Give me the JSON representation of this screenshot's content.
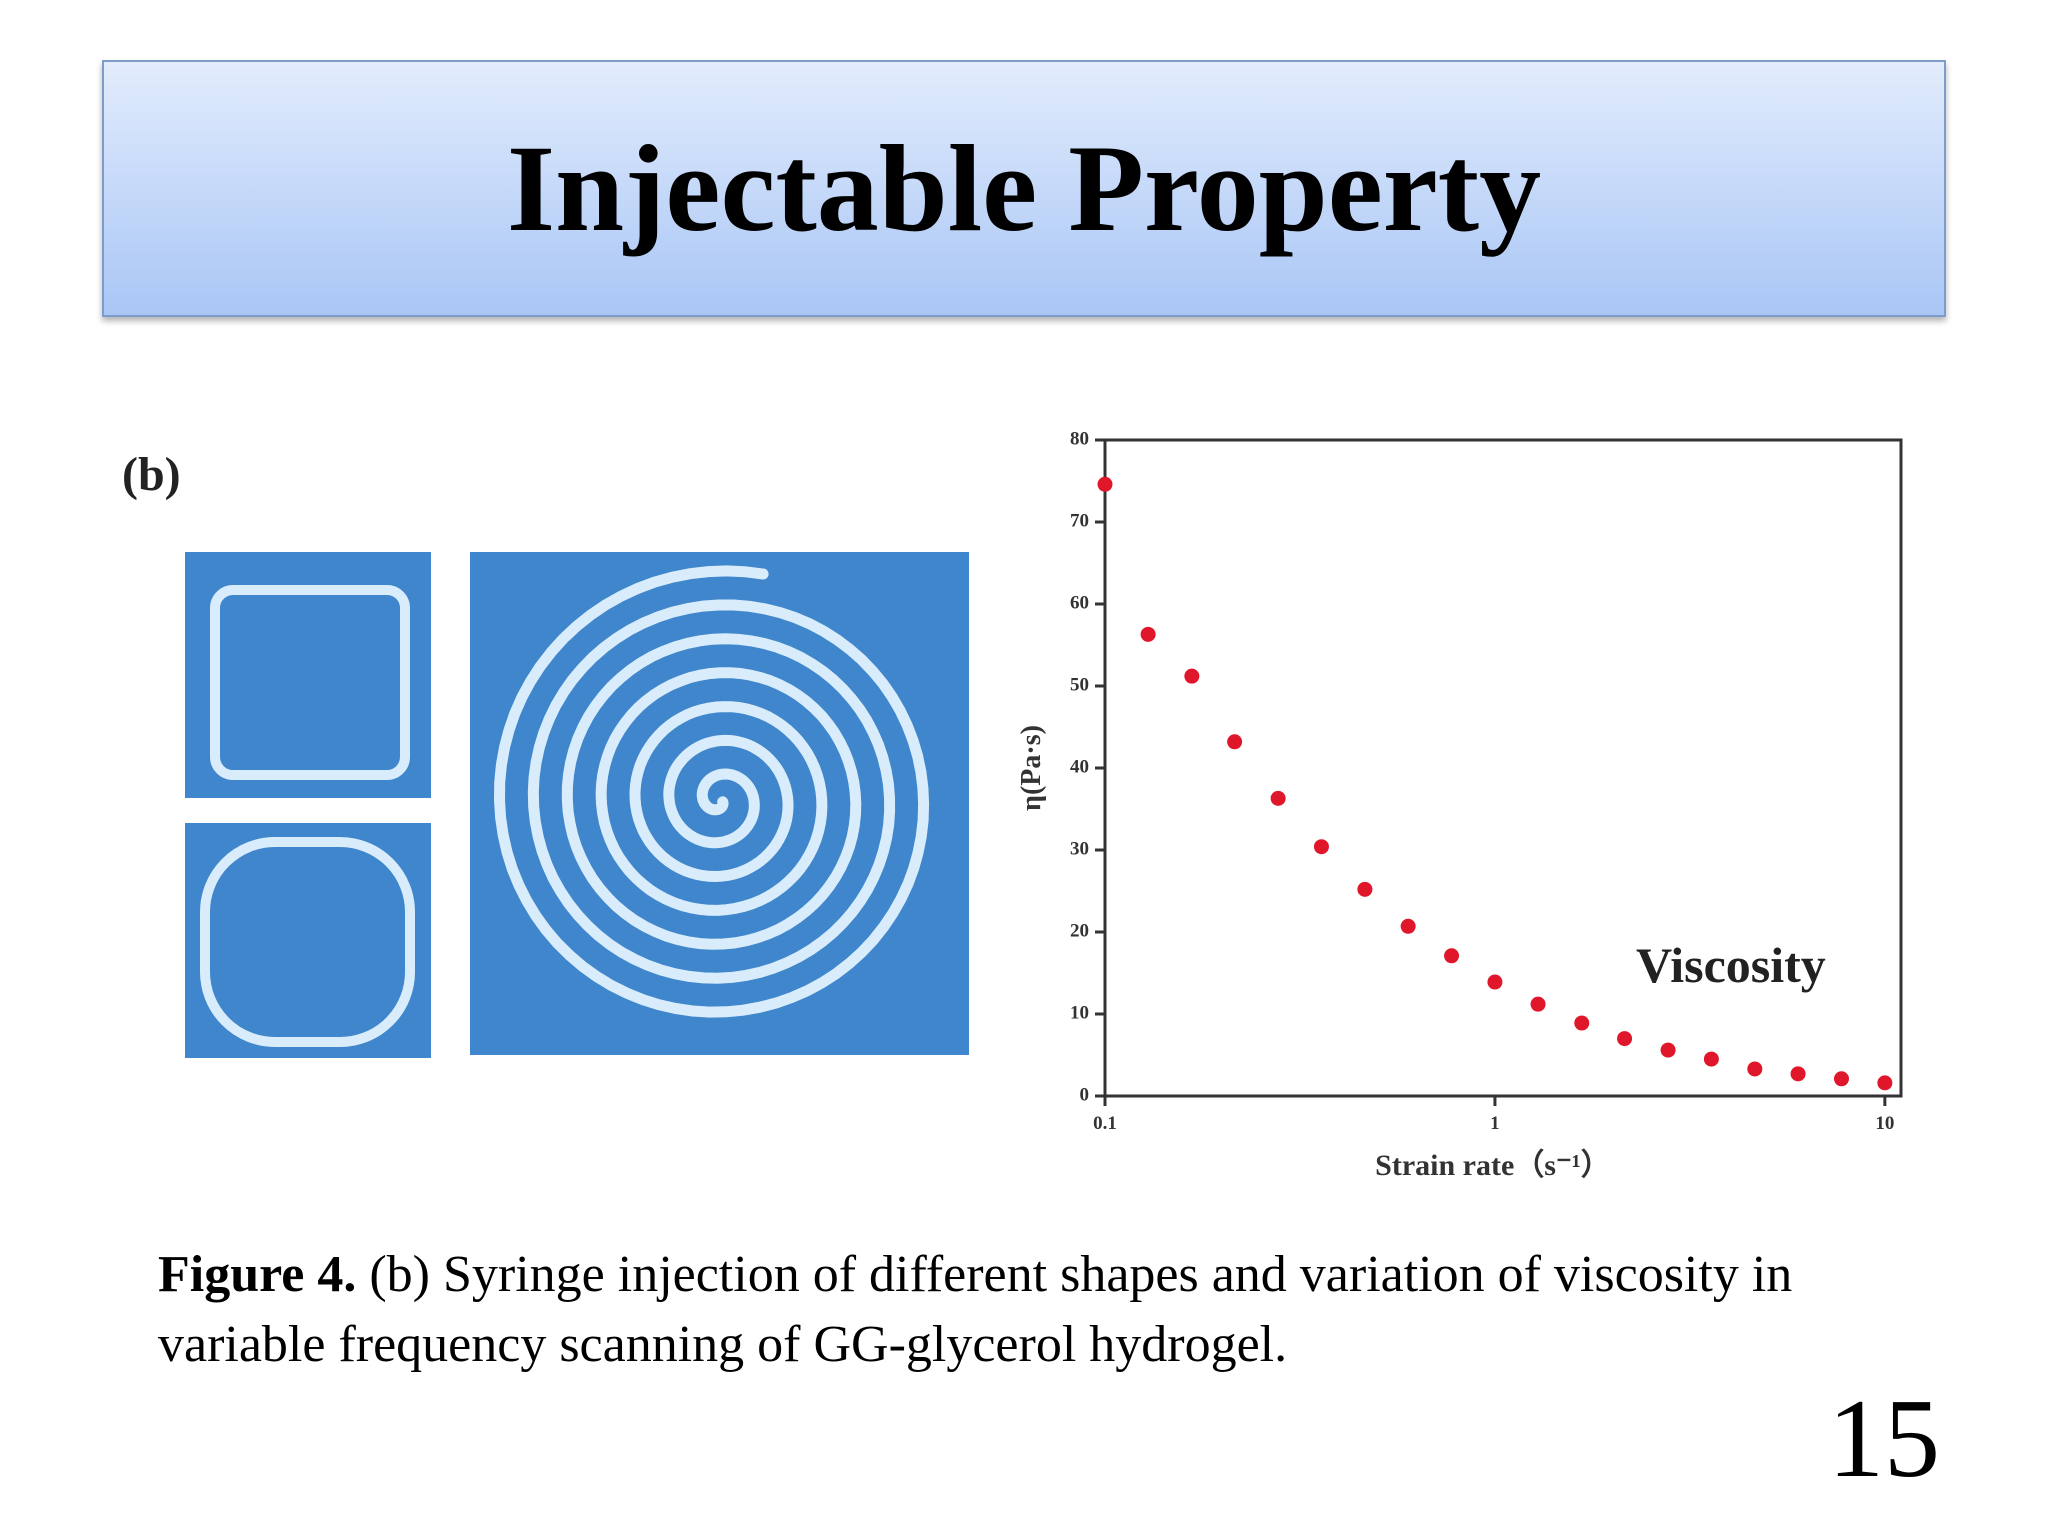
{
  "header": {
    "title": "Injectable Property"
  },
  "figure_label": "(b)",
  "chart_data": {
    "type": "scatter",
    "annotation": "Viscosity",
    "x_label": "Strain rate（s⁻¹）",
    "y_label": "η(Pa·s)",
    "x": [
      0.1,
      0.129,
      0.167,
      0.215,
      0.278,
      0.359,
      0.464,
      0.599,
      0.774,
      1,
      1.29,
      1.67,
      2.15,
      2.78,
      3.59,
      4.64,
      5.99,
      7.74,
      10
    ],
    "values": [
      74.6,
      56.3,
      51.2,
      43.2,
      36.3,
      30.4,
      25.2,
      20.7,
      17.1,
      13.9,
      11.2,
      8.9,
      7.0,
      5.6,
      4.5,
      3.3,
      2.7,
      2.1,
      1.6
    ],
    "color": "#e0162b",
    "xscale": "log",
    "xlim": [
      0.1,
      11
    ],
    "xticks": [
      0.1,
      1,
      10
    ],
    "ylim": [
      0,
      80
    ],
    "yticks": [
      0,
      10,
      20,
      30,
      40,
      50,
      60,
      70,
      80
    ]
  },
  "caption": {
    "label": "Figure 4.",
    "text": "(b) Syringe injection of different shapes and variation of viscosity in variable frequency scanning of GG-glycerol hydrogel."
  },
  "page_number": "15"
}
